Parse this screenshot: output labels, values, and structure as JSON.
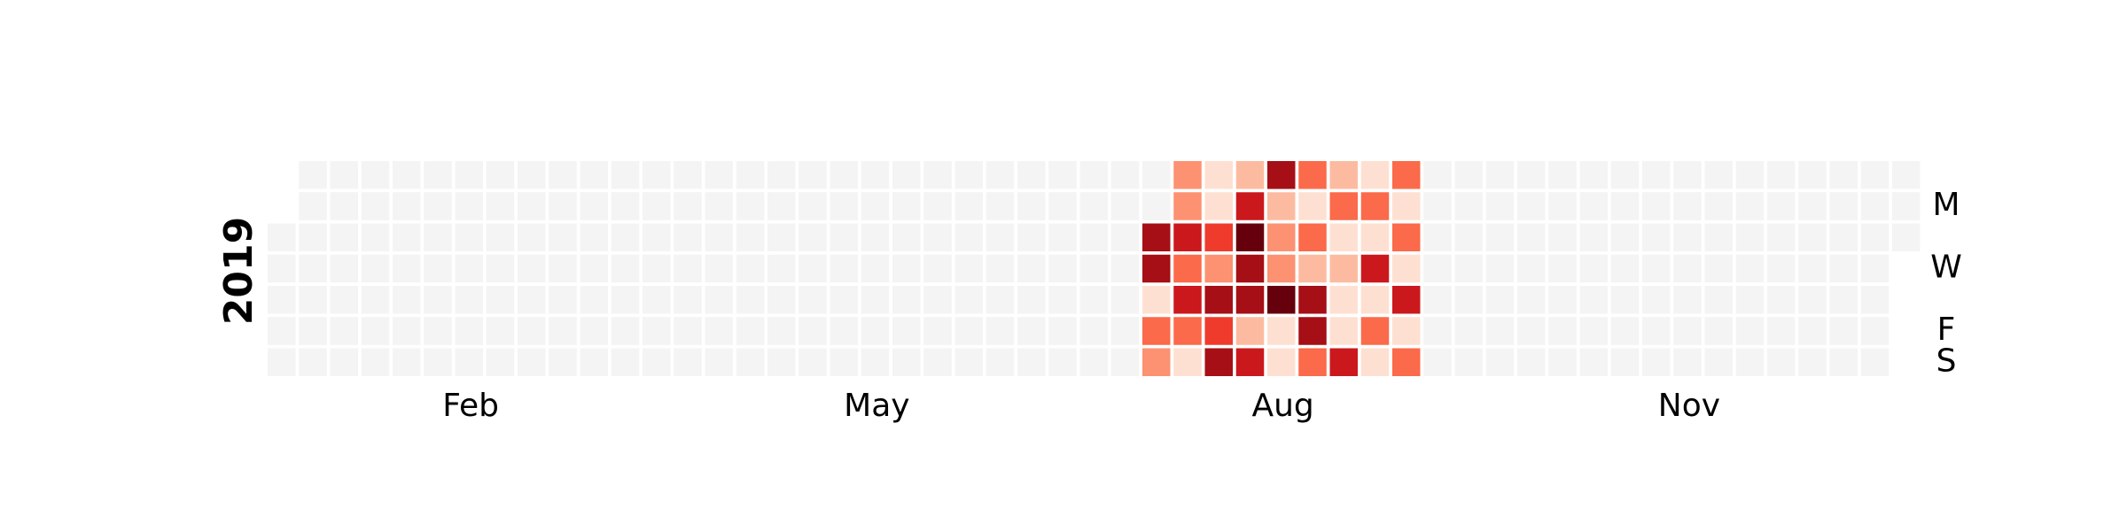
{
  "chart_data": {
    "type": "heatmap",
    "title": "",
    "year_label": "2019",
    "x_tick_labels": [
      "Feb",
      "May",
      "Aug",
      "Nov"
    ],
    "y_tick_labels": [
      "M",
      "W",
      "F",
      "S"
    ],
    "colormap": "Reds",
    "empty_cell_color": "#f4f4f4",
    "grid_rows": 7,
    "grid_weeks": 53,
    "row_order": "Sunday at top, Saturday at bottom",
    "value_range": [
      0,
      9
    ],
    "data_start_date": "2019-07-14",
    "weeks": [
      {
        "week_of": "2019-07-14",
        "values": [
          null,
          null,
          8,
          8,
          1,
          4,
          3
        ]
      },
      {
        "week_of": "2019-07-21",
        "values": [
          3,
          3,
          7,
          4,
          7,
          4,
          1
        ]
      },
      {
        "week_of": "2019-07-28",
        "values": [
          1,
          1,
          6,
          3,
          8,
          6,
          8
        ]
      },
      {
        "week_of": "2019-08-04",
        "values": [
          2,
          7,
          9,
          8,
          8,
          2,
          7
        ]
      },
      {
        "week_of": "2019-08-11",
        "values": [
          8,
          2,
          3,
          3,
          9,
          1,
          1
        ]
      },
      {
        "week_of": "2019-08-18",
        "values": [
          5,
          1,
          4,
          2,
          8,
          8,
          4
        ]
      },
      {
        "week_of": "2019-08-25",
        "values": [
          2,
          5,
          1,
          2,
          1,
          1,
          7
        ]
      },
      {
        "week_of": "2019-09-01",
        "values": [
          1,
          4,
          1,
          7,
          1,
          4,
          1
        ]
      },
      {
        "week_of": "2019-09-08",
        "values": [
          5,
          1,
          4,
          1,
          7,
          1,
          5
        ]
      }
    ]
  }
}
